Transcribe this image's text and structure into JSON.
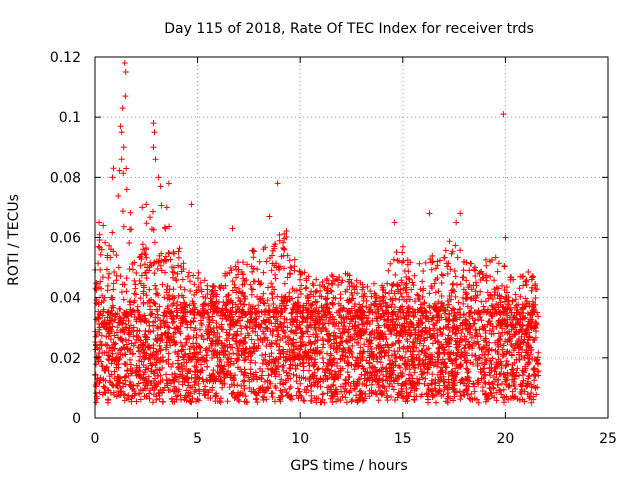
{
  "chart_data": {
    "type": "scatter",
    "title": "Day 115 of 2018, Rate Of TEC Index for receiver trds",
    "xlabel": "GPS time / hours",
    "ylabel": "ROTI / TECUs",
    "xlim": [
      0,
      25
    ],
    "ylim": [
      0,
      0.12
    ],
    "xticks": [
      0,
      5,
      10,
      15,
      20,
      25
    ],
    "yticks": [
      0,
      0.02,
      0.04,
      0.06,
      0.08,
      0.1,
      0.12
    ],
    "xtick_labels": [
      "0",
      "5",
      "10",
      "15",
      "20",
      "25"
    ],
    "ytick_labels": [
      "0",
      "0.02",
      "0.04",
      "0.06",
      "0.08",
      "0.1",
      "0.12"
    ],
    "grid": true,
    "marker": "+",
    "color": "#ff0000",
    "series": [
      {
        "name": "ROTI",
        "x_range": [
          0,
          21.6
        ],
        "baseline": 0.018,
        "dense_band": [
          0.005,
          0.035
        ],
        "envelope": [
          [
            0.0,
            0.05
          ],
          [
            0.3,
            0.066
          ],
          [
            0.6,
            0.06
          ],
          [
            1.0,
            0.07
          ],
          [
            1.4,
            0.1
          ],
          [
            1.7,
            0.07
          ],
          [
            2.0,
            0.05
          ],
          [
            2.4,
            0.06
          ],
          [
            2.8,
            0.08
          ],
          [
            3.3,
            0.07
          ],
          [
            3.8,
            0.06
          ],
          [
            4.5,
            0.055
          ],
          [
            5.5,
            0.045
          ],
          [
            6.5,
            0.05
          ],
          [
            7.5,
            0.055
          ],
          [
            8.5,
            0.06
          ],
          [
            9.2,
            0.065
          ],
          [
            10.0,
            0.05
          ],
          [
            11.0,
            0.045
          ],
          [
            12.0,
            0.05
          ],
          [
            13.0,
            0.045
          ],
          [
            14.0,
            0.045
          ],
          [
            14.8,
            0.06
          ],
          [
            15.5,
            0.05
          ],
          [
            16.5,
            0.055
          ],
          [
            17.5,
            0.06
          ],
          [
            18.5,
            0.05
          ],
          [
            19.5,
            0.055
          ],
          [
            20.5,
            0.045
          ],
          [
            21.0,
            0.05
          ],
          [
            21.6,
            0.045
          ]
        ],
        "highlights": [
          [
            1.45,
            0.118
          ],
          [
            1.5,
            0.115
          ],
          [
            1.48,
            0.107
          ],
          [
            1.35,
            0.103
          ],
          [
            1.25,
            0.097
          ],
          [
            1.3,
            0.095
          ],
          [
            1.4,
            0.09
          ],
          [
            1.3,
            0.086
          ],
          [
            0.9,
            0.083
          ],
          [
            0.85,
            0.08
          ],
          [
            1.55,
            0.076
          ],
          [
            2.85,
            0.098
          ],
          [
            2.9,
            0.095
          ],
          [
            2.85,
            0.09
          ],
          [
            2.95,
            0.086
          ],
          [
            3.1,
            0.08
          ],
          [
            3.2,
            0.077
          ],
          [
            3.6,
            0.078
          ],
          [
            3.5,
            0.07
          ],
          [
            2.5,
            0.071
          ],
          [
            2.3,
            0.07
          ],
          [
            8.9,
            0.078
          ],
          [
            8.5,
            0.067
          ],
          [
            4.7,
            0.071
          ],
          [
            16.3,
            0.068
          ],
          [
            17.8,
            0.068
          ],
          [
            19.9,
            0.101
          ],
          [
            20.0,
            0.06
          ],
          [
            17.6,
            0.065
          ],
          [
            14.6,
            0.065
          ],
          [
            6.7,
            0.063
          ],
          [
            0.4,
            0.064
          ],
          [
            0.2,
            0.065
          ]
        ]
      }
    ]
  }
}
